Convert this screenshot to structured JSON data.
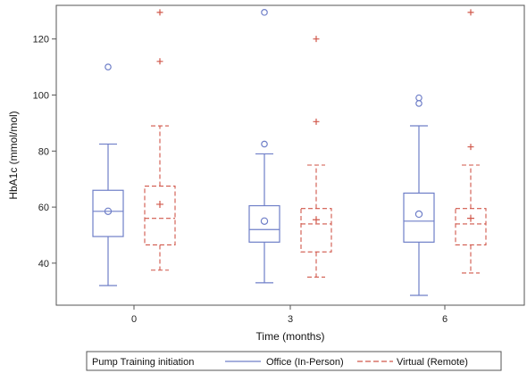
{
  "chart_data": {
    "type": "box",
    "xlabel": "Time (months)",
    "ylabel": "HbA1c (mmol/mol)",
    "categories": [
      "0",
      "3",
      "6"
    ],
    "ylim": [
      25,
      132
    ],
    "yticks": [
      40,
      60,
      80,
      100,
      120
    ],
    "grid": false,
    "legend": {
      "placement": "bottom",
      "title": "Pump Training initiation"
    },
    "series": [
      {
        "name": "Office (In-Person)",
        "color": "#6f7fc8",
        "line_style": "solid",
        "mean_marker": "circle",
        "boxes": [
          {
            "category": "0",
            "whisker_low": 32,
            "q1": 49.5,
            "median": 58.5,
            "q3": 66,
            "whisker_high": 82.5,
            "mean": 58.5,
            "outliers": [
              110
            ]
          },
          {
            "category": "3",
            "whisker_low": 33,
            "q1": 47.5,
            "median": 52,
            "q3": 60.5,
            "whisker_high": 79,
            "mean": 55,
            "outliers": [
              82.5,
              129.5
            ]
          },
          {
            "category": "6",
            "whisker_low": 28.5,
            "q1": 47.5,
            "median": 55,
            "q3": 65,
            "whisker_high": 89,
            "mean": 57.5,
            "outliers": [
              97,
              99
            ]
          }
        ]
      },
      {
        "name": "Virtual (Remote)",
        "color": "#d0574a",
        "line_style": "dashed",
        "mean_marker": "plus",
        "boxes": [
          {
            "category": "0",
            "whisker_low": 37.5,
            "q1": 46.5,
            "median": 56,
            "q3": 67.5,
            "whisker_high": 89,
            "mean": 61,
            "outliers": [
              112,
              129.5
            ]
          },
          {
            "category": "3",
            "whisker_low": 35,
            "q1": 44,
            "median": 54,
            "q3": 59.5,
            "whisker_high": 75,
            "mean": 55.5,
            "outliers": [
              90.5,
              120
            ]
          },
          {
            "category": "6",
            "whisker_low": 36.5,
            "q1": 46.5,
            "median": 54,
            "q3": 59.5,
            "whisker_high": 75,
            "mean": 56,
            "outliers": [
              81.5,
              129.5
            ]
          }
        ]
      }
    ]
  }
}
